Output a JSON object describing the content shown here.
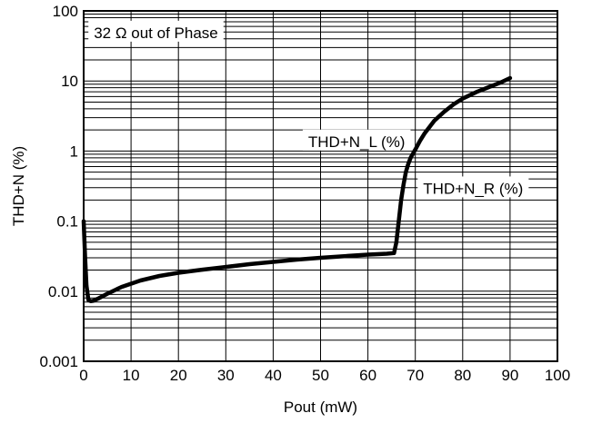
{
  "chart_data": {
    "type": "line",
    "title": "",
    "xlabel": "Pout (mW)",
    "ylabel": "THD+N (%)",
    "xlim": [
      0,
      100
    ],
    "ylim": [
      0.001,
      100
    ],
    "yscale": "log",
    "grid": true,
    "x_ticks": [
      0,
      10,
      20,
      30,
      40,
      50,
      60,
      70,
      80,
      90,
      100
    ],
    "x_tick_labels": [
      "0",
      "10",
      "20",
      "30",
      "40",
      "50",
      "60",
      "70",
      "80",
      "90",
      "100"
    ],
    "y_ticks": [
      0.001,
      0.01,
      0.1,
      1,
      10,
      100
    ],
    "y_tick_labels": [
      "0.001",
      "0.01",
      "0.1",
      "1",
      "10",
      "100"
    ],
    "annotations": [
      {
        "text": "32 Ω out of Phase",
        "x": 1,
        "y": 50
      },
      {
        "text": "THD+N_L (%)",
        "x": 69,
        "y": 1.4,
        "anchor": "end"
      },
      {
        "text": "THD+N_R (%)",
        "x": 70.5,
        "y": 0.3,
        "anchor": "start"
      }
    ],
    "series": [
      {
        "values_note": "",
        "x": [
          0,
          0.3,
          0.6,
          1,
          1.5,
          2,
          3,
          5,
          8,
          12,
          16,
          20,
          25,
          30,
          35,
          40,
          45,
          50,
          55,
          60,
          64,
          65.5,
          66,
          66.5,
          67,
          67.5,
          68,
          68.5,
          69,
          70,
          71,
          72,
          74,
          76,
          78,
          80,
          83,
          86,
          88,
          90
        ],
        "y": [
          0.1,
          0.03,
          0.012,
          0.0075,
          0.0072,
          0.0073,
          0.0078,
          0.0092,
          0.0115,
          0.0142,
          0.0165,
          0.0183,
          0.0203,
          0.0222,
          0.0243,
          0.0262,
          0.0282,
          0.03,
          0.0316,
          0.0333,
          0.0343,
          0.035,
          0.05,
          0.1,
          0.2,
          0.33,
          0.5,
          0.65,
          0.8,
          1.05,
          1.4,
          1.8,
          2.7,
          3.6,
          4.6,
          5.6,
          7.0,
          8.4,
          9.5,
          11.0
        ]
      }
    ]
  }
}
